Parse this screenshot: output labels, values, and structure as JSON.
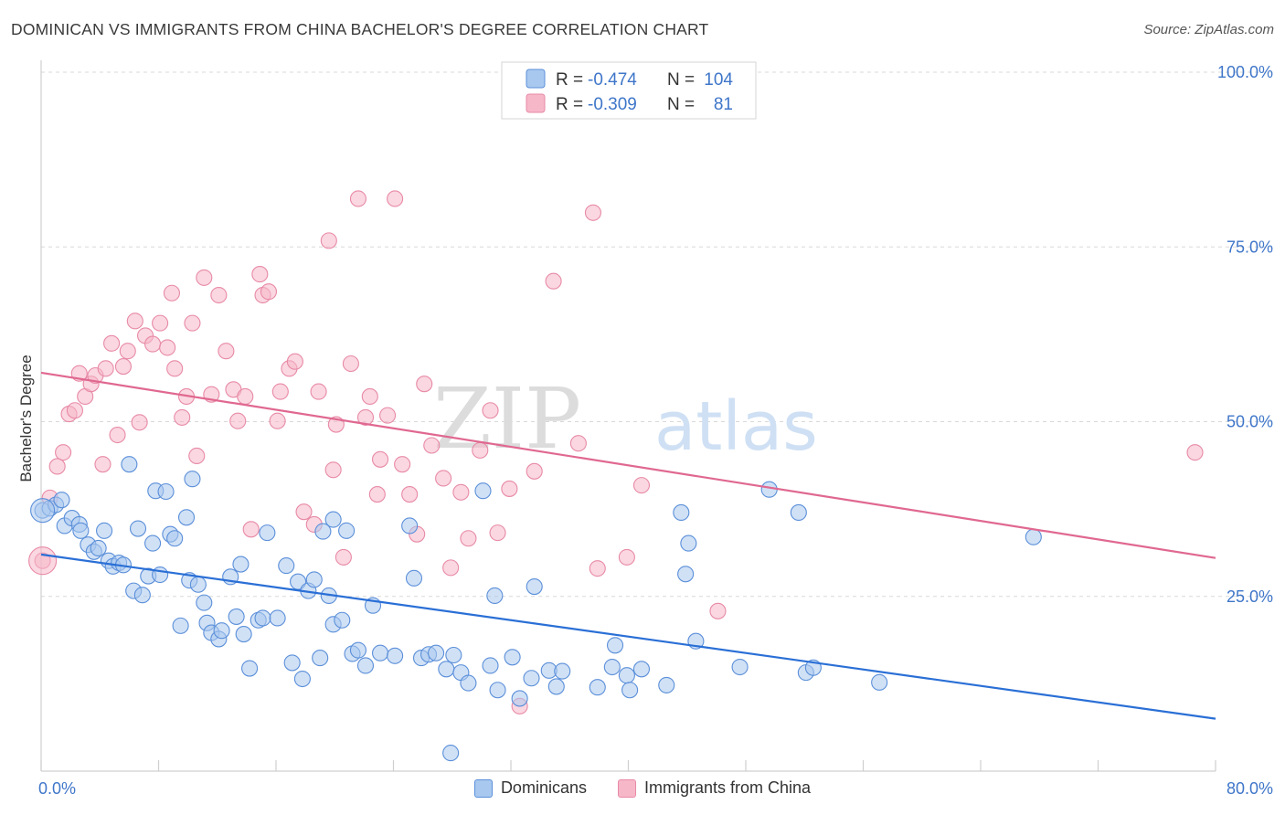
{
  "header": {
    "title": "DOMINICAN VS IMMIGRANTS FROM CHINA BACHELOR'S DEGREE CORRELATION CHART",
    "source": "Source: ZipAtlas.com"
  },
  "watermark": {
    "part1": "ZIP",
    "part2": "atlas"
  },
  "colors": {
    "blue_fill": "#a9c8ef",
    "blue_stroke": "#5b8fd9",
    "blue_line": "#2a6fd6",
    "pink_fill": "#f6b7c9",
    "pink_stroke": "#e88aa6",
    "pink_line": "#e06890",
    "axis_text": "#3f76c9",
    "grid": "#d8d8d8"
  },
  "stats_legend": {
    "rows": [
      {
        "r_label": "R =",
        "r_value": "-0.474",
        "n_label": "N =",
        "n_value": "104",
        "series": "blue"
      },
      {
        "r_label": "R =",
        "r_value": "-0.309",
        "n_label": "N =",
        "n_value": "81",
        "series": "pink"
      }
    ]
  },
  "chart_data": {
    "type": "scatter",
    "title": "DOMINICAN VS IMMIGRANTS FROM CHINA BACHELOR'S DEGREE CORRELATION CHART",
    "xlabel": "",
    "ylabel": "Bachelor's Degree",
    "xlim": [
      0,
      80
    ],
    "ylim": [
      0,
      100
    ],
    "x_tick_labels": [
      "0.0%",
      "80.0%"
    ],
    "y_tick_values": [
      25,
      50,
      75,
      100
    ],
    "y_tick_labels": [
      "25.0%",
      "50.0%",
      "75.0%",
      "100.0%"
    ],
    "grid": true,
    "legend_position": "bottom",
    "series": [
      {
        "name": "Dominicans",
        "color": "#5b8fd9",
        "trend": {
          "x": [
            0,
            80
          ],
          "y": [
            31,
            7.5
          ]
        },
        "points": [
          [
            0.1,
            37.3
          ],
          [
            0.6,
            37.6
          ],
          [
            1,
            38.1
          ],
          [
            1.4,
            38.8
          ],
          [
            1.6,
            35.1
          ],
          [
            2.1,
            36.2
          ],
          [
            2.6,
            35.3
          ],
          [
            2.7,
            34.4
          ],
          [
            3.2,
            32.4
          ],
          [
            3.6,
            31.4
          ],
          [
            3.9,
            31.9
          ],
          [
            4.3,
            34.4
          ],
          [
            4.6,
            30.1
          ],
          [
            4.9,
            29.3
          ],
          [
            5.3,
            29.8
          ],
          [
            5.6,
            29.5
          ],
          [
            6.0,
            43.9
          ],
          [
            6.3,
            25.8
          ],
          [
            6.6,
            34.7
          ],
          [
            6.9,
            25.2
          ],
          [
            7.3,
            27.9
          ],
          [
            7.6,
            32.6
          ],
          [
            7.8,
            40.1
          ],
          [
            8.1,
            28.1
          ],
          [
            8.5,
            40.0
          ],
          [
            8.8,
            33.9
          ],
          [
            9.1,
            33.3
          ],
          [
            9.5,
            20.8
          ],
          [
            9.9,
            36.3
          ],
          [
            10.1,
            27.3
          ],
          [
            10.3,
            41.8
          ],
          [
            10.7,
            26.7
          ],
          [
            11.1,
            24.1
          ],
          [
            11.3,
            21.2
          ],
          [
            11.6,
            19.8
          ],
          [
            12.1,
            18.9
          ],
          [
            12.3,
            20.1
          ],
          [
            12.9,
            27.8
          ],
          [
            13.3,
            22.1
          ],
          [
            13.6,
            29.6
          ],
          [
            13.8,
            19.6
          ],
          [
            14.2,
            14.7
          ],
          [
            14.8,
            21.6
          ],
          [
            15.1,
            21.9
          ],
          [
            15.4,
            34.1
          ],
          [
            16.1,
            21.9
          ],
          [
            16.7,
            29.4
          ],
          [
            17.1,
            15.5
          ],
          [
            17.5,
            27.1
          ],
          [
            17.8,
            13.2
          ],
          [
            18.2,
            25.8
          ],
          [
            18.6,
            27.4
          ],
          [
            19.0,
            16.2
          ],
          [
            19.2,
            34.3
          ],
          [
            19.6,
            25.1
          ],
          [
            19.9,
            21.0
          ],
          [
            20.5,
            21.6
          ],
          [
            20.8,
            34.4
          ],
          [
            21.2,
            16.8
          ],
          [
            21.6,
            17.3
          ],
          [
            22.1,
            15.1
          ],
          [
            22.6,
            23.7
          ],
          [
            23.1,
            16.9
          ],
          [
            24.1,
            16.5
          ],
          [
            25.1,
            35.1
          ],
          [
            25.4,
            27.6
          ],
          [
            25.9,
            16.2
          ],
          [
            26.4,
            16.7
          ],
          [
            26.9,
            16.9
          ],
          [
            27.6,
            14.6
          ],
          [
            28.1,
            16.6
          ],
          [
            28.6,
            14.1
          ],
          [
            29.1,
            12.6
          ],
          [
            30.1,
            40.1
          ],
          [
            30.6,
            15.1
          ],
          [
            30.9,
            25.1
          ],
          [
            31.1,
            11.6
          ],
          [
            32.1,
            16.3
          ],
          [
            32.6,
            10.4
          ],
          [
            33.4,
            13.3
          ],
          [
            33.6,
            26.4
          ],
          [
            34.6,
            14.4
          ],
          [
            35.1,
            12.1
          ],
          [
            35.5,
            14.3
          ],
          [
            37.9,
            12.0
          ],
          [
            38.9,
            14.9
          ],
          [
            39.1,
            18.0
          ],
          [
            39.9,
            13.7
          ],
          [
            40.1,
            11.6
          ],
          [
            40.9,
            14.6
          ],
          [
            42.6,
            12.3
          ],
          [
            43.6,
            37.0
          ],
          [
            43.9,
            28.2
          ],
          [
            44.1,
            32.6
          ],
          [
            44.6,
            18.6
          ],
          [
            47.6,
            14.9
          ],
          [
            49.6,
            40.3
          ],
          [
            51.6,
            37.0
          ],
          [
            52.1,
            14.1
          ],
          [
            52.6,
            14.8
          ],
          [
            57.1,
            12.7
          ],
          [
            67.6,
            33.5
          ],
          [
            27.9,
            2.6
          ],
          [
            19.9,
            36.0
          ]
        ]
      },
      {
        "name": "Immigrants from China",
        "color": "#e88aa6",
        "trend": {
          "x": [
            0,
            80
          ],
          "y": [
            57,
            30.5
          ]
        },
        "points": [
          [
            0.1,
            30.1
          ],
          [
            0.6,
            39.1
          ],
          [
            1.1,
            43.6
          ],
          [
            1.5,
            45.6
          ],
          [
            1.9,
            51.1
          ],
          [
            2.3,
            51.6
          ],
          [
            2.6,
            56.9
          ],
          [
            3.0,
            53.6
          ],
          [
            3.4,
            55.4
          ],
          [
            3.7,
            56.6
          ],
          [
            4.2,
            43.9
          ],
          [
            4.4,
            57.6
          ],
          [
            4.8,
            61.2
          ],
          [
            5.2,
            48.1
          ],
          [
            5.6,
            57.9
          ],
          [
            5.9,
            60.1
          ],
          [
            6.4,
            64.4
          ],
          [
            6.7,
            49.9
          ],
          [
            7.1,
            62.3
          ],
          [
            7.6,
            61.1
          ],
          [
            8.1,
            64.1
          ],
          [
            8.6,
            60.6
          ],
          [
            8.9,
            68.4
          ],
          [
            9.1,
            57.6
          ],
          [
            9.6,
            50.6
          ],
          [
            9.9,
            53.6
          ],
          [
            10.3,
            64.1
          ],
          [
            10.6,
            45.1
          ],
          [
            11.1,
            70.6
          ],
          [
            11.6,
            53.9
          ],
          [
            12.1,
            68.1
          ],
          [
            12.6,
            60.1
          ],
          [
            13.1,
            54.6
          ],
          [
            13.4,
            50.1
          ],
          [
            13.9,
            53.6
          ],
          [
            14.3,
            34.6
          ],
          [
            14.9,
            71.1
          ],
          [
            15.1,
            68.1
          ],
          [
            15.5,
            68.6
          ],
          [
            16.1,
            50.1
          ],
          [
            16.3,
            54.3
          ],
          [
            16.9,
            57.6
          ],
          [
            17.3,
            58.6
          ],
          [
            17.9,
            37.1
          ],
          [
            18.6,
            35.3
          ],
          [
            18.9,
            54.3
          ],
          [
            19.6,
            75.9
          ],
          [
            19.9,
            43.1
          ],
          [
            20.1,
            49.6
          ],
          [
            20.6,
            30.6
          ],
          [
            21.1,
            58.3
          ],
          [
            21.6,
            81.9
          ],
          [
            22.1,
            50.6
          ],
          [
            22.4,
            53.6
          ],
          [
            22.9,
            39.6
          ],
          [
            23.1,
            44.6
          ],
          [
            23.6,
            50.9
          ],
          [
            24.1,
            81.9
          ],
          [
            24.6,
            43.9
          ],
          [
            25.1,
            39.6
          ],
          [
            25.6,
            33.9
          ],
          [
            26.1,
            55.4
          ],
          [
            26.6,
            46.6
          ],
          [
            27.4,
            41.9
          ],
          [
            27.9,
            29.1
          ],
          [
            28.6,
            39.9
          ],
          [
            29.1,
            33.3
          ],
          [
            29.9,
            45.9
          ],
          [
            30.6,
            51.6
          ],
          [
            31.1,
            34.1
          ],
          [
            31.9,
            40.4
          ],
          [
            32.6,
            9.3
          ],
          [
            33.6,
            42.9
          ],
          [
            34.9,
            70.1
          ],
          [
            36.6,
            46.9
          ],
          [
            37.6,
            79.9
          ],
          [
            37.9,
            29.0
          ],
          [
            39.9,
            30.6
          ],
          [
            40.9,
            40.9
          ],
          [
            46.1,
            22.9
          ],
          [
            78.6,
            45.6
          ]
        ]
      }
    ]
  },
  "bottom_legend": {
    "items": [
      {
        "label": "Dominicans",
        "series": "blue"
      },
      {
        "label": "Immigrants from China",
        "series": "pink"
      }
    ]
  }
}
